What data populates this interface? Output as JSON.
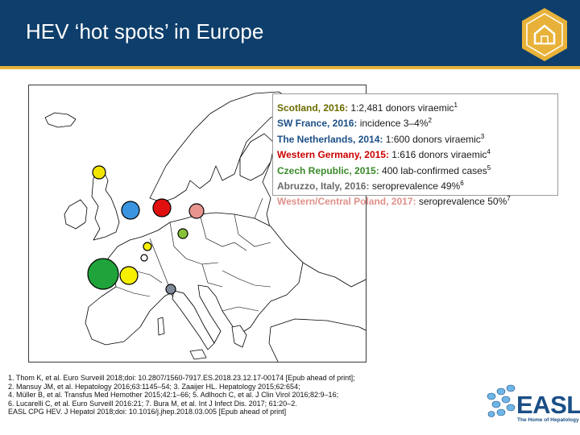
{
  "slide": {
    "title": "HEV ‘hot spots’ in Europe"
  },
  "legend": {
    "items": [
      {
        "place": "Scotland, 2016:",
        "desc": " 1:2,481 donors viraemic",
        "ref": "1",
        "color": "#6b6b00"
      },
      {
        "place": "SW France, 2016:",
        "desc": " incidence 3–4%",
        "ref": "2",
        "color": "#1b4f86"
      },
      {
        "place": "The Netherlands, 2014:",
        "desc": " 1:600 donors viraemic",
        "ref": "3",
        "color": "#1b4f86"
      },
      {
        "place": "Western Germany, 2015:",
        "desc": " 1:616 donors viraemic",
        "ref": "4",
        "color": "#cc0000"
      },
      {
        "place": "Czech Republic, 2015:",
        "desc": " 400 lab-confirmed cases",
        "ref": "5",
        "color": "#3a8a2a"
      },
      {
        "place": "Abruzzo, Italy, 2016:",
        "desc": " seroprevalence 49%",
        "ref": "6",
        "color": "#6a6a6a"
      },
      {
        "place": "Western/Central Poland, 2017:",
        "desc": " seroprevalence 50%",
        "ref": "7",
        "color": "#e0908a"
      }
    ]
  },
  "hotspots": [
    {
      "name": "Scotland",
      "color": "#f2e600"
    },
    {
      "name": "SW France",
      "color": "#1fa33a"
    },
    {
      "name": "The Netherlands",
      "color": "#3a94e0"
    },
    {
      "name": "Western Germany",
      "color": "#e01010"
    },
    {
      "name": "Czech Republic",
      "color": "#88c23a"
    },
    {
      "name": "Abruzzo Italy",
      "color": "#808a99"
    },
    {
      "name": "Poland",
      "color": "#e8958f"
    },
    {
      "name": "France east",
      "color": "#f7f000"
    },
    {
      "name": "Switzerland",
      "color": "#ffffff"
    }
  ],
  "references": [
    "1. Thom K, et al. Euro Surveill 2018;doi: 10.2807/1560-7917.ES.2018.23.12.17-00174 [Epub ahead of print];",
    "2. Mansuy JM, et al. Hepatology 2016;63:1145–54; 3. Zaaijer HL. Hepatology 2015;62:654;",
    "4. Müller B, et al. Transfus Med Hemother 2015;42:1–66; 5. Adlhoch C, et al. J Clin Virol 2016;82:9–16;",
    "6. Lucarelli C, et al. Euro Surveill 2016:21; 7. Bura M, et al. Int J Infect Dis. 2017; 61:20–2.",
    "EASL CPG HEV. J Hepatol 2018;doi: 10.1016/j.jhep.2018.03.005 [Epub ahead of print]"
  ],
  "branding": {
    "logo_text": "EASL",
    "tagline": "The Home of Hepatology",
    "accent": "#e8b23a",
    "header_color": "#0e3e6b"
  },
  "icons": {
    "home": "home-icon"
  }
}
